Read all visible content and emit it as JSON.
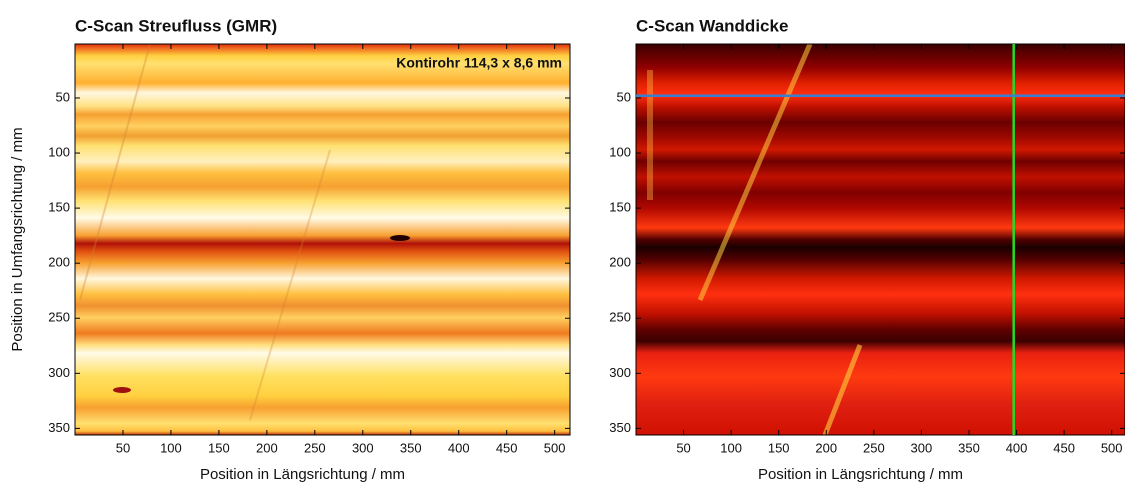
{
  "chart_data": [
    {
      "type": "heatmap",
      "title": "C-Scan Streufluss (GMR)",
      "annotation": "Kontirohr 114,3 x 8,6 mm",
      "x_label": "Position  in Längsrichtung / mm",
      "y_label": "Position  in Umfangsrichtung / mm",
      "xlim": [
        0,
        516
      ],
      "ylim": [
        356,
        1
      ],
      "xticks": [
        50,
        100,
        150,
        200,
        250,
        300,
        350,
        400,
        450,
        500
      ],
      "yticks": [
        50,
        100,
        150,
        200,
        250,
        300,
        350
      ]
    },
    {
      "type": "heatmap",
      "title": "C-Scan Wanddicke",
      "x_label": "Position  in Längsrichtung / mm",
      "xlim": [
        0,
        514
      ],
      "ylim": [
        356,
        1
      ],
      "xticks": [
        50,
        100,
        150,
        200,
        250,
        300,
        350,
        400,
        450,
        500
      ],
      "yticks": [
        50,
        100,
        150,
        200,
        250,
        300,
        350
      ],
      "cursor": {
        "x": 397,
        "y": 48,
        "x_color": "#22dd22",
        "y_color": "#3a7fd0"
      }
    }
  ]
}
